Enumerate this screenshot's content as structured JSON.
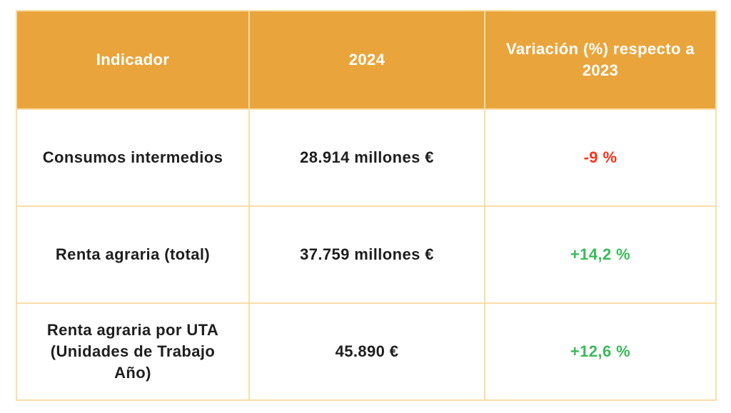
{
  "colors": {
    "header_bg": "#E9A53C",
    "header_text": "#FFFFFF",
    "border": "#FBDDA6",
    "body_text": "#1E1E1E",
    "negative": "#FA3219",
    "positive": "#3ABA58",
    "background": "#FFFFFF"
  },
  "table": {
    "columns": [
      {
        "label": "Indicador"
      },
      {
        "label": "2024"
      },
      {
        "label": "Variación (%) respecto a 2023"
      }
    ],
    "rows": [
      {
        "indicator": "Consumos intermedios",
        "value_2024": "28.914 millones €",
        "variation": "-9 %",
        "trend": "negative"
      },
      {
        "indicator": "Renta agraria (total)",
        "value_2024": "37.759 millones €",
        "variation": "+14,2 %",
        "trend": "positive"
      },
      {
        "indicator": "Renta agraria por UTA (Unidades de Trabajo Año)",
        "value_2024": "45.890 €",
        "variation": "+12,6 %",
        "trend": "positive"
      }
    ]
  },
  "chart_data": {
    "type": "table",
    "columns": [
      "Indicador",
      "2024",
      "Variación (%) respecto a 2023"
    ],
    "rows": [
      [
        "Consumos intermedios",
        "28.914 millones €",
        "-9 %"
      ],
      [
        "Renta agraria (total)",
        "37.759 millones €",
        "+14,2 %"
      ],
      [
        "Renta agraria por UTA (Unidades de Trabajo Año)",
        "45.890 €",
        "+12,6 %"
      ]
    ],
    "notes": {
      "negative_values_color": "#FA3219",
      "positive_values_color": "#3ABA58"
    }
  }
}
